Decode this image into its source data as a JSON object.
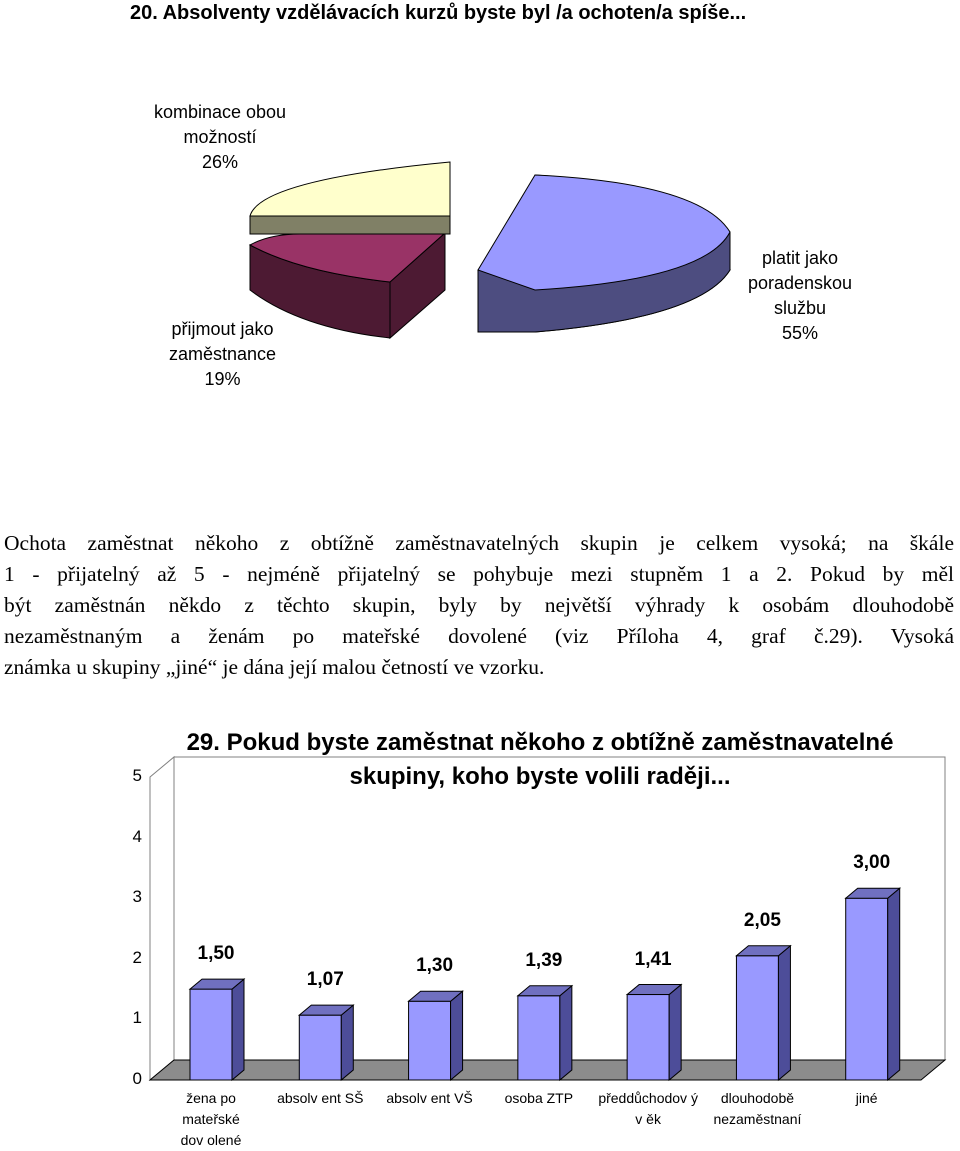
{
  "section_title": "20. Absolventy vzdělávacích kurzů byste  byl /a ochoten/a spíše...",
  "pie": {
    "slices": [
      {
        "label_lines": [
          "platit jako",
          "poradenskou",
          "službu",
          "55%"
        ],
        "value": 55,
        "color": "#9999ff",
        "side_color": "#4d4d80"
      },
      {
        "label_lines": [
          "přijmout jako",
          "zaměstnance",
          "19%"
        ],
        "value": 19,
        "color": "#993366",
        "side_color": "#4d1a33"
      },
      {
        "label_lines": [
          "kombinace obou",
          "možností",
          "26%"
        ],
        "value": 26,
        "color": "#ffffcc",
        "side_color": "#808066"
      }
    ]
  },
  "paragraph": {
    "lines": [
      "Ochota zaměstnat někoho z obtížně zaměstnavatelných skupin je celkem vysoká; na škále",
      "1 - přijatelný až 5 - nejméně přijatelný se pohybuje mezi stupněm 1 a 2. Pokud by měl",
      "být zaměstnán někdo z těchto skupin, byly by největší výhrady k osobám dlouhodobě",
      "nezaměstnaným a ženám po mateřské dovolené (viz Příloha 4, graf č.29). Vysoká",
      "známka u skupiny „jiné“ je dána její malou četností ve vzorku."
    ]
  },
  "chart_data": {
    "type": "bar",
    "title_lines": [
      "29. Pokud byste zaměstnat někoho z obtížně zaměstnavatelné",
      "skupiny, koho byste volili raději..."
    ],
    "categories": [
      [
        "žena po",
        "mateřské",
        "dov olené"
      ],
      [
        "absolv ent SŠ"
      ],
      [
        "absolv ent VŠ"
      ],
      [
        "osoba ZTP"
      ],
      [
        "předdůchodov ý",
        "v ěk"
      ],
      [
        "dlouhodobě",
        "nezaměstnaní"
      ],
      [
        "jiné"
      ]
    ],
    "values": [
      1.5,
      1.07,
      1.3,
      1.39,
      1.41,
      2.05,
      3.0
    ],
    "value_labels": [
      "1,50",
      "1,07",
      "1,30",
      "1,39",
      "1,41",
      "2,05",
      "3,00"
    ],
    "yticks": [
      "0",
      "1",
      "2",
      "3",
      "4",
      "5"
    ],
    "ylim": [
      0,
      5
    ],
    "bar_color": "#9999ff",
    "bar_side_color": "#4d4d99",
    "bar_top_color": "#7070c0",
    "grid": false,
    "legend": "none"
  }
}
